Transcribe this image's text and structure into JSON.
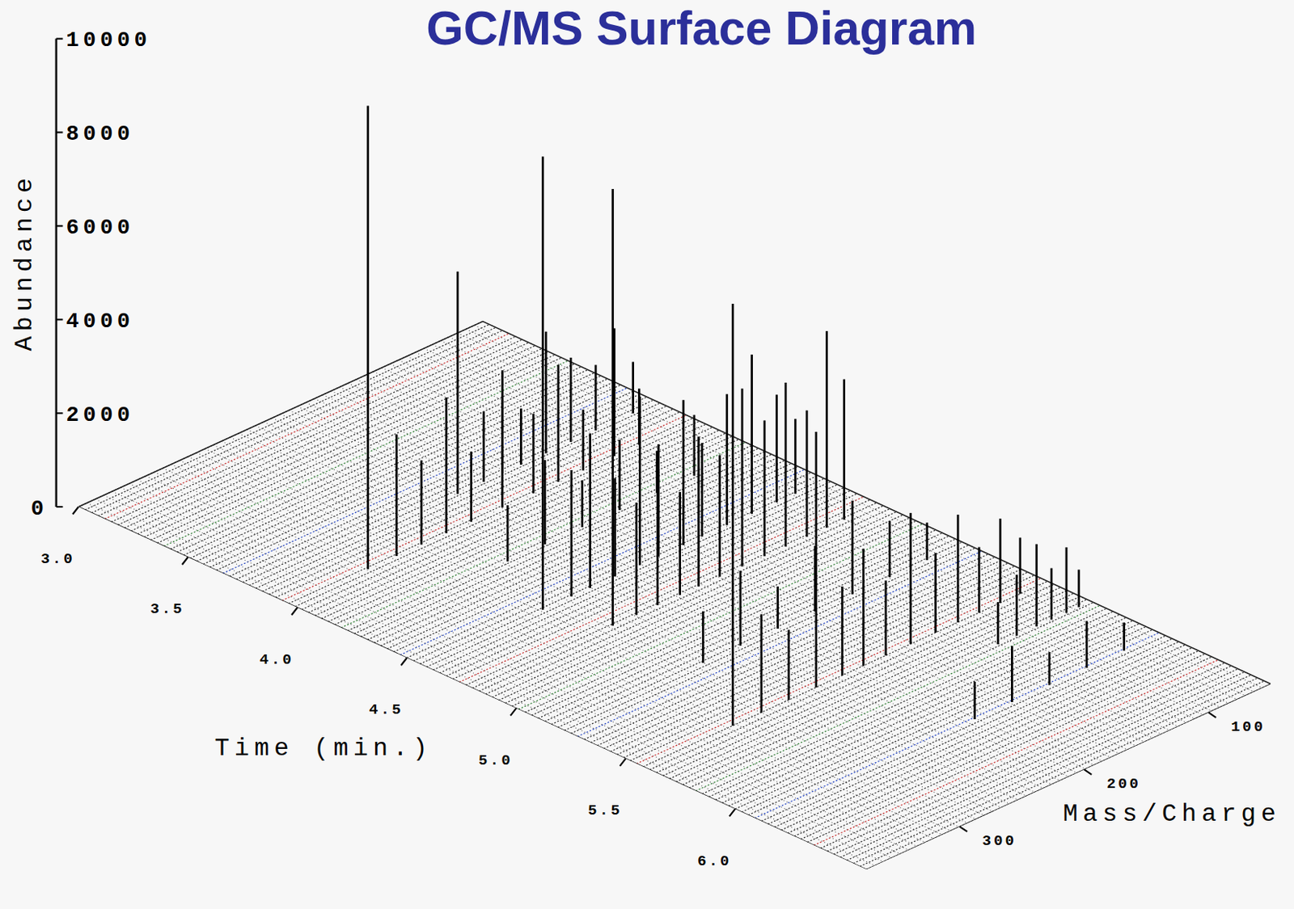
{
  "chart_data": {
    "type": "surface",
    "title": "GC/MS Surface Diagram",
    "xlabel": "Time (min.)",
    "ylabel": "Mass/Charge",
    "zlabel": "Abundance",
    "xlim": [
      3.0,
      6.6
    ],
    "xticks": [
      {
        "value": 3,
        "label": "3.0"
      },
      3.5,
      {
        "value": 4,
        "label": "4.0"
      },
      4.5,
      {
        "value": 5,
        "label": "5.0"
      },
      5.5,
      {
        "value": 6,
        "label": "6.0"
      }
    ],
    "ylim": [
      50,
      375
    ],
    "yticks": [
      100,
      200,
      300
    ],
    "zlim": [
      0,
      10000
    ],
    "zticks": [
      0,
      2000,
      4000,
      6000,
      8000,
      10000
    ],
    "scans": [
      {
        "time": 3.8,
        "mz": [
          211,
          190,
          175,
          160,
          140,
          120,
          100,
          85,
          70
        ],
        "abundance": [
          4750,
          1500,
          2200,
          1200,
          2600,
          1800,
          1400,
          2000,
          1100
        ]
      },
      {
        "time": 3.97,
        "mz": [
          313,
          290,
          270,
          250,
          230,
          205,
          180,
          160,
          140,
          115,
          95
        ],
        "abundance": [
          9900,
          2600,
          1800,
          2900,
          1500,
          2300,
          1700,
          2500,
          1300,
          1900,
          1200
        ]
      },
      {
        "time": 4.25,
        "mz": [
          250,
          220,
          190,
          160,
          130,
          100
        ],
        "abundance": [
          1200,
          1800,
          1000,
          1500,
          900,
          1300
        ]
      },
      {
        "time": 4.57,
        "mz": [
          278,
          255,
          240,
          220,
          200,
          185,
          165,
          150,
          130,
          110,
          90,
          75
        ],
        "abundance": [
          9680,
          2700,
          3300,
          2100,
          3600,
          2400,
          3100,
          2000,
          2800,
          3400,
          2300,
          1600
        ]
      },
      {
        "time": 4.81,
        "mz": [
          264,
          245,
          228,
          210,
          195,
          178,
          160,
          142,
          125,
          108,
          92,
          78
        ],
        "abundance": [
          9330,
          2400,
          3000,
          2200,
          3200,
          2600,
          3800,
          2900,
          3500,
          2700,
          4200,
          3000
        ]
      },
      {
        "time": 5.2,
        "mz": [
          260,
          230,
          200,
          170,
          140,
          110,
          80
        ],
        "abundance": [
          1100,
          1600,
          900,
          1400,
          2000,
          1200,
          800
        ]
      },
      {
        "time": 5.58,
        "mz": [
          303,
          280,
          258,
          236,
          215,
          198,
          180,
          160,
          140,
          122,
          105,
          88,
          72
        ],
        "abundance": [
          9010,
          2100,
          1500,
          5460,
          1900,
          2500,
          1600,
          2800,
          1700,
          2300,
          1400,
          1800,
          1200
        ]
      },
      {
        "time": 5.78,
        "mz": [
          125,
          110,
          94,
          82,
          70,
          60
        ],
        "abundance": [
          900,
          1300,
          1760,
          1100,
          1400,
          800
        ]
      },
      {
        "time": 6.1,
        "mz": [
          200,
          170,
          140,
          110,
          80
        ],
        "abundance": [
          800,
          1200,
          700,
          1000,
          600
        ]
      }
    ]
  }
}
